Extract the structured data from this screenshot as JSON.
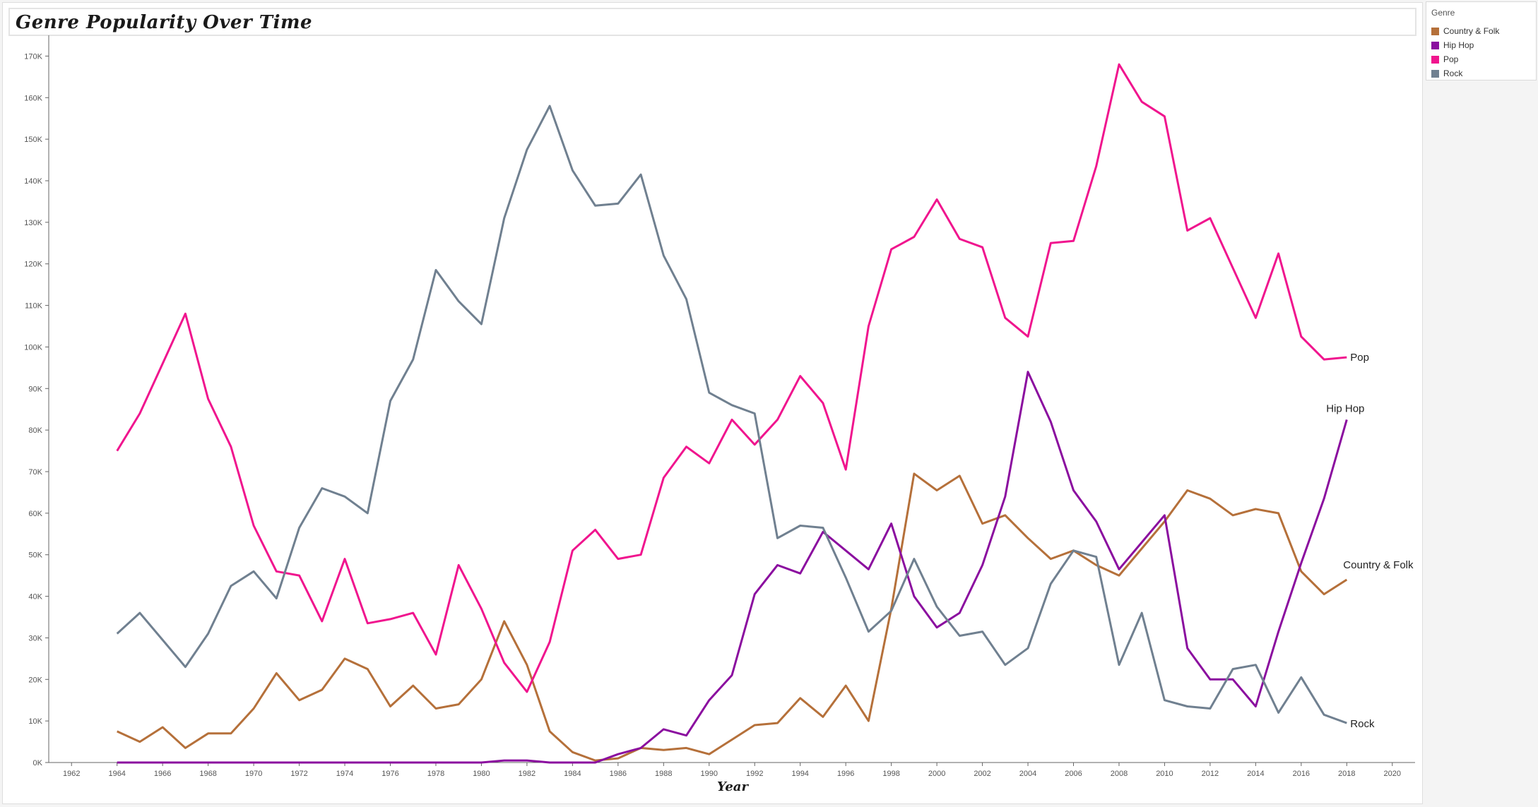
{
  "chart_data": {
    "type": "line",
    "title": "Genre Popularity Over Time",
    "xlabel": "Year",
    "ylabel": "",
    "xlim": [
      1961,
      2021
    ],
    "ylim": [
      0,
      175000
    ],
    "x_ticks": [
      1962,
      1964,
      1966,
      1968,
      1970,
      1972,
      1974,
      1976,
      1978,
      1980,
      1982,
      1984,
      1986,
      1988,
      1990,
      1992,
      1994,
      1996,
      1998,
      2000,
      2002,
      2004,
      2006,
      2008,
      2010,
      2012,
      2014,
      2016,
      2018,
      2020
    ],
    "y_ticks": [
      {
        "value": 0,
        "label": "0K"
      },
      {
        "value": 10000,
        "label": "10K"
      },
      {
        "value": 20000,
        "label": "20K"
      },
      {
        "value": 30000,
        "label": "30K"
      },
      {
        "value": 40000,
        "label": "40K"
      },
      {
        "value": 50000,
        "label": "50K"
      },
      {
        "value": 60000,
        "label": "60K"
      },
      {
        "value": 70000,
        "label": "70K"
      },
      {
        "value": 80000,
        "label": "80K"
      },
      {
        "value": 90000,
        "label": "90K"
      },
      {
        "value": 100000,
        "label": "100K"
      },
      {
        "value": 110000,
        "label": "110K"
      },
      {
        "value": 120000,
        "label": "120K"
      },
      {
        "value": 130000,
        "label": "130K"
      },
      {
        "value": 140000,
        "label": "140K"
      },
      {
        "value": 150000,
        "label": "150K"
      },
      {
        "value": 160000,
        "label": "160K"
      },
      {
        "value": 170000,
        "label": "170K"
      }
    ],
    "grid": false,
    "legend_position": "top-right",
    "legend_title": "Genre",
    "x": [
      1964,
      1965,
      1966,
      1967,
      1968,
      1969,
      1970,
      1971,
      1972,
      1973,
      1974,
      1975,
      1976,
      1977,
      1978,
      1979,
      1980,
      1981,
      1982,
      1983,
      1984,
      1985,
      1986,
      1987,
      1988,
      1989,
      1990,
      1991,
      1992,
      1993,
      1994,
      1995,
      1996,
      1997,
      1998,
      1999,
      2000,
      2001,
      2002,
      2003,
      2004,
      2005,
      2006,
      2007,
      2008,
      2009,
      2010,
      2011,
      2012,
      2013,
      2014,
      2015,
      2016,
      2017,
      2018
    ],
    "series": [
      {
        "name": "Country & Folk",
        "color": "#b5703a",
        "values": [
          7500,
          5000,
          8500,
          3500,
          7000,
          7000,
          13000,
          21500,
          15000,
          17500,
          25000,
          22500,
          13500,
          18500,
          13000,
          14000,
          20000,
          34000,
          23500,
          7500,
          2500,
          500,
          1000,
          3500,
          3000,
          3500,
          2000,
          5500,
          9000,
          9500,
          15500,
          11000,
          18500,
          10000,
          37000,
          69500,
          65500,
          69000,
          57500,
          59500,
          54000,
          49000,
          51000,
          47500,
          45000,
          51500,
          58000,
          65500,
          63500,
          59500,
          61000,
          60000,
          46000,
          40500,
          44000
        ]
      },
      {
        "name": "Hip Hop",
        "color": "#8b0e9f",
        "values": [
          0,
          0,
          0,
          0,
          0,
          0,
          0,
          0,
          0,
          0,
          0,
          0,
          0,
          0,
          0,
          0,
          0,
          500,
          500,
          0,
          0,
          0,
          2000,
          3500,
          8000,
          6500,
          15000,
          21000,
          40500,
          47500,
          45500,
          55500,
          51000,
          46500,
          57500,
          40000,
          32500,
          36000,
          47500,
          64000,
          94000,
          82000,
          65500,
          58000,
          46500,
          53000,
          59500,
          27500,
          20000,
          20000,
          13500,
          31500,
          48000,
          63500,
          82500
        ]
      },
      {
        "name": "Pop",
        "color": "#f0158e",
        "values": [
          75000,
          84000,
          96000,
          108000,
          87500,
          76000,
          57000,
          46000,
          45000,
          34000,
          49000,
          33500,
          34500,
          36000,
          26000,
          47500,
          37000,
          24000,
          17000,
          29000,
          51000,
          56000,
          49000,
          50000,
          68500,
          76000,
          72000,
          82500,
          76500,
          82500,
          93000,
          86500,
          70500,
          105000,
          123500,
          126500,
          135500,
          126000,
          124000,
          107000,
          102500,
          125000,
          125500,
          143500,
          168000,
          159000,
          155500,
          128000,
          131000,
          119000,
          107000,
          122500,
          102500,
          97000,
          97500
        ]
      },
      {
        "name": "Rock",
        "color": "#708090",
        "values": [
          31000,
          36000,
          29500,
          23000,
          31000,
          42500,
          46000,
          39500,
          56500,
          66000,
          64000,
          60000,
          87000,
          97000,
          118500,
          111000,
          105500,
          131000,
          147500,
          158000,
          142500,
          134000,
          134500,
          141500,
          122000,
          111500,
          89000,
          86000,
          84000,
          54000,
          57000,
          56500,
          44500,
          31500,
          36500,
          49000,
          37500,
          30500,
          31500,
          23500,
          27500,
          43000,
          51000,
          49500,
          23500,
          36000,
          15000,
          13500,
          13000,
          22500,
          23500,
          12000,
          20500,
          11500,
          9500
        ]
      }
    ],
    "end_labels": [
      {
        "series": "Pop",
        "text": "Pop"
      },
      {
        "series": "Hip Hop",
        "text": "Hip Hop"
      },
      {
        "series": "Country & Folk",
        "text": "Country & Folk"
      },
      {
        "series": "Rock",
        "text": "Rock"
      }
    ]
  },
  "legend": {
    "title": "Genre",
    "items": [
      {
        "label": "Country & Folk",
        "color": "#b5703a"
      },
      {
        "label": "Hip Hop",
        "color": "#8b0e9f"
      },
      {
        "label": "Pop",
        "color": "#f0158e"
      },
      {
        "label": "Rock",
        "color": "#708090"
      }
    ]
  }
}
